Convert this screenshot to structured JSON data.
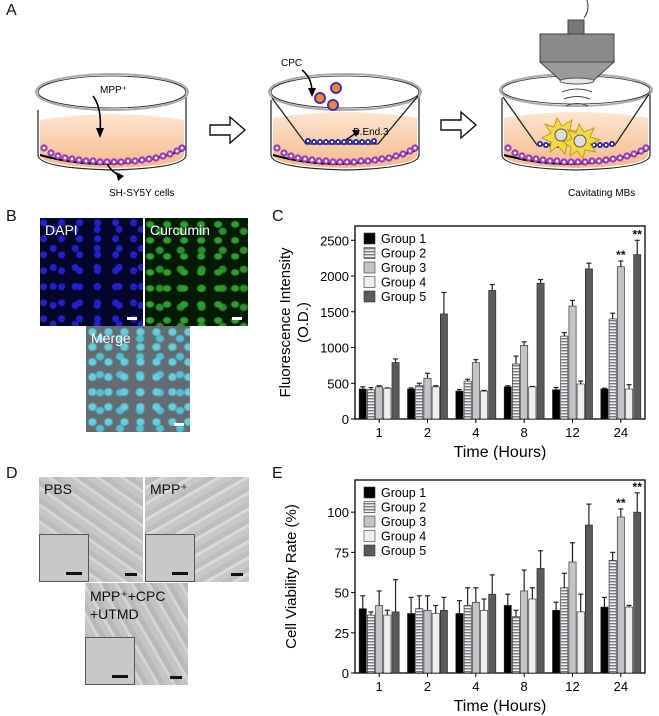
{
  "panels": {
    "A": {
      "letter": "A",
      "labels": {
        "mpp": "MPP⁺",
        "shsy5y": "SH-SY5Y cells",
        "cpc": "CPC",
        "bend3": "B.End.3",
        "cavitating": "Cavitating MBs"
      }
    },
    "B": {
      "letter": "B",
      "images": [
        {
          "label": "DAPI",
          "color": "#0a0a8a"
        },
        {
          "label": "Curcumin",
          "color": "#0d4a0d"
        },
        {
          "label": "Merge",
          "color": "#6f7a7e"
        }
      ]
    },
    "C": {
      "letter": "C"
    },
    "D": {
      "letter": "D",
      "images": [
        {
          "label": "PBS"
        },
        {
          "label": "MPP⁺"
        },
        {
          "label_line1": "MPP⁺+CPC",
          "label_line2": "+UTMD"
        }
      ]
    },
    "E": {
      "letter": "E"
    }
  },
  "legend": [
    {
      "name": "Group 1",
      "fill": "#000000",
      "pattern": "solid"
    },
    {
      "name": "Group 2",
      "fill": "#b8b8c4",
      "pattern": "hstripe"
    },
    {
      "name": "Group 3",
      "fill": "#c4c4c4",
      "pattern": "solid"
    },
    {
      "name": "Group 4",
      "fill": "#eeeeee",
      "pattern": "solid"
    },
    {
      "name": "Group 5",
      "fill": "#5a5a5a",
      "pattern": "solid"
    }
  ],
  "chart_data": [
    {
      "panel": "C",
      "type": "bar",
      "title": "",
      "xlabel": "Time (Hours)",
      "ylabel": "Fluorescence Intensity (O.D.)",
      "ylabel_line1": "Fluorescence Intensity",
      "ylabel_line2": "(O.D.)",
      "ylim": [
        0,
        2700
      ],
      "yticks": [
        0,
        500,
        1000,
        1500,
        2000,
        2500
      ],
      "categories": [
        "1",
        "2",
        "4",
        "8",
        "12",
        "24"
      ],
      "grid": false,
      "legend_position": "upper left",
      "series": [
        {
          "name": "Group 1",
          "values": [
            420,
            420,
            390,
            450,
            410,
            420
          ],
          "errors": [
            30,
            15,
            20,
            15,
            30,
            10
          ]
        },
        {
          "name": "Group 2",
          "values": [
            410,
            470,
            530,
            770,
            1160,
            1400
          ],
          "errors": [
            30,
            30,
            25,
            110,
            50,
            80
          ]
        },
        {
          "name": "Group 3",
          "values": [
            450,
            570,
            790,
            1030,
            1580,
            2130
          ],
          "errors": [
            15,
            70,
            40,
            50,
            80,
            80
          ]
        },
        {
          "name": "Group 4",
          "values": [
            430,
            450,
            390,
            450,
            490,
            420
          ],
          "errors": [
            5,
            15,
            10,
            5,
            40,
            60
          ]
        },
        {
          "name": "Group 5",
          "values": [
            790,
            1470,
            1800,
            1900,
            2100,
            2300
          ],
          "errors": [
            50,
            300,
            80,
            50,
            80,
            200
          ]
        }
      ],
      "annotations": [
        {
          "category": "24",
          "series": "Group 3",
          "text": "**"
        },
        {
          "category": "24",
          "series": "Group 5",
          "text": "**"
        }
      ]
    },
    {
      "panel": "E",
      "type": "bar",
      "title": "",
      "xlabel": "Time (Hours)",
      "ylabel": "Cell Viability Rate (%)",
      "ylim": [
        0,
        120
      ],
      "yticks": [
        0,
        25,
        50,
        75,
        100
      ],
      "categories": [
        "1",
        "2",
        "4",
        "8",
        "12",
        "24"
      ],
      "grid": false,
      "legend_position": "upper left",
      "series": [
        {
          "name": "Group 1",
          "values": [
            40,
            37,
            37,
            42,
            39,
            41
          ],
          "errors": [
            8,
            10,
            8,
            7,
            5,
            6
          ]
        },
        {
          "name": "Group 2",
          "values": [
            36,
            40,
            42,
            35,
            53,
            70
          ],
          "errors": [
            2,
            8,
            11,
            4,
            9,
            5
          ]
        },
        {
          "name": "Group 3",
          "values": [
            42,
            39,
            44,
            51,
            69,
            97
          ],
          "errors": [
            9,
            9,
            9,
            13,
            12,
            5
          ]
        },
        {
          "name": "Group 4",
          "values": [
            36,
            37,
            39,
            46,
            38,
            41
          ],
          "errors": [
            3,
            5,
            7,
            7,
            11,
            1
          ]
        },
        {
          "name": "Group 5",
          "values": [
            38,
            39,
            49,
            65,
            92,
            100
          ],
          "errors": [
            20,
            8,
            12,
            11,
            13,
            12
          ]
        }
      ],
      "annotations": [
        {
          "category": "24",
          "series": "Group 3",
          "text": "**"
        },
        {
          "category": "24",
          "series": "Group 5",
          "text": "**"
        }
      ]
    }
  ]
}
